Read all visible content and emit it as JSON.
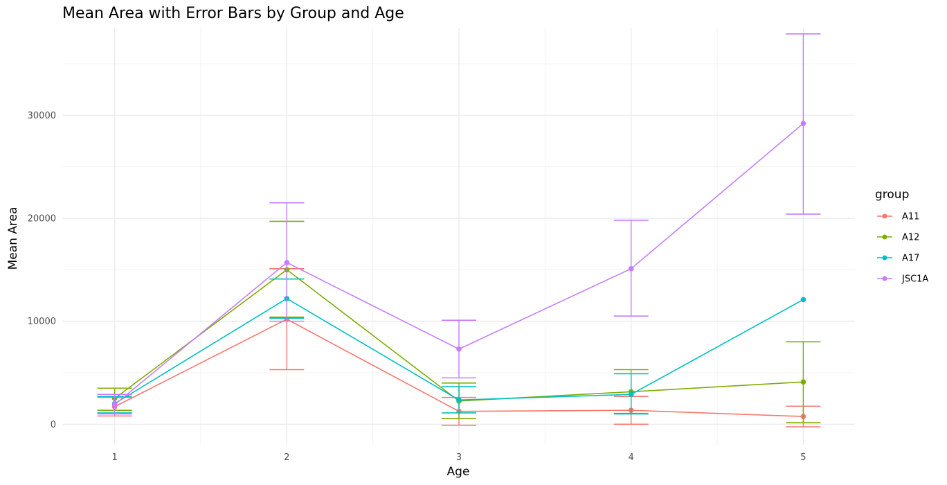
{
  "chart_data": {
    "type": "line",
    "title": "Mean Area with Error Bars by Group and Age",
    "xlabel": "Age",
    "ylabel": "Mean Area",
    "x": [
      1,
      2,
      3,
      4,
      5
    ],
    "xlim": [
      0.7,
      5.3
    ],
    "ylim": [
      -2000,
      38500
    ],
    "yticks": [
      0,
      10000,
      20000,
      30000
    ],
    "grid": true,
    "legend": {
      "title": "group",
      "position": "right"
    },
    "series": [
      {
        "name": "A11",
        "color": "#F8766D",
        "values": [
          1700,
          10200,
          1250,
          1350,
          750
        ],
        "lower": [
          800,
          5300,
          -100,
          0,
          -250
        ],
        "upper": [
          2600,
          15100,
          2600,
          2700,
          1750
        ]
      },
      {
        "name": "A12",
        "color": "#7CAE00",
        "values": [
          2500,
          15000,
          2250,
          3150,
          4100
        ],
        "lower": [
          1350,
          10400,
          550,
          1050,
          150
        ],
        "upper": [
          3500,
          19700,
          4000,
          5300,
          8000
        ]
      },
      {
        "name": "A17",
        "color": "#00BFC4",
        "values": [
          2000,
          12200,
          2350,
          2900,
          12100
        ],
        "lower": [
          1100,
          10300,
          1100,
          1000,
          12100
        ],
        "upper": [
          2700,
          14100,
          3650,
          4900,
          12100
        ]
      },
      {
        "name": "JSC1A",
        "color": "#C77CFF",
        "values": [
          1900,
          15700,
          7300,
          15100,
          29200
        ],
        "lower": [
          1000,
          10000,
          4500,
          10500,
          20400
        ],
        "upper": [
          2900,
          21500,
          10100,
          19800,
          37900
        ]
      }
    ]
  }
}
